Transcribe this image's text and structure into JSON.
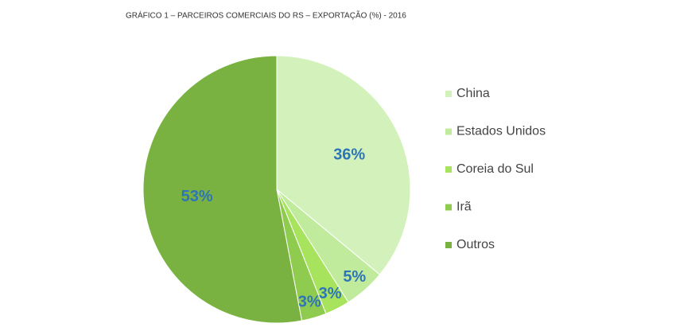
{
  "chart_data": {
    "type": "pie",
    "title": "GRÁFICO 1 – PARCEIROS COMERCIAIS DO RS – EXPORTAÇÃO (%) - 2016",
    "categories": [
      "China",
      "Estados Unidos",
      "Coreia do Sul",
      "Irã",
      "Outros"
    ],
    "values": [
      36,
      5,
      3,
      3,
      53
    ],
    "value_labels": [
      "36%",
      "5%",
      "3%",
      "3%",
      "53%"
    ],
    "colors": [
      "#d3f2bb",
      "#c0eb9d",
      "#a8e35e",
      "#8fcb4f",
      "#79b241"
    ],
    "legend": "right"
  }
}
